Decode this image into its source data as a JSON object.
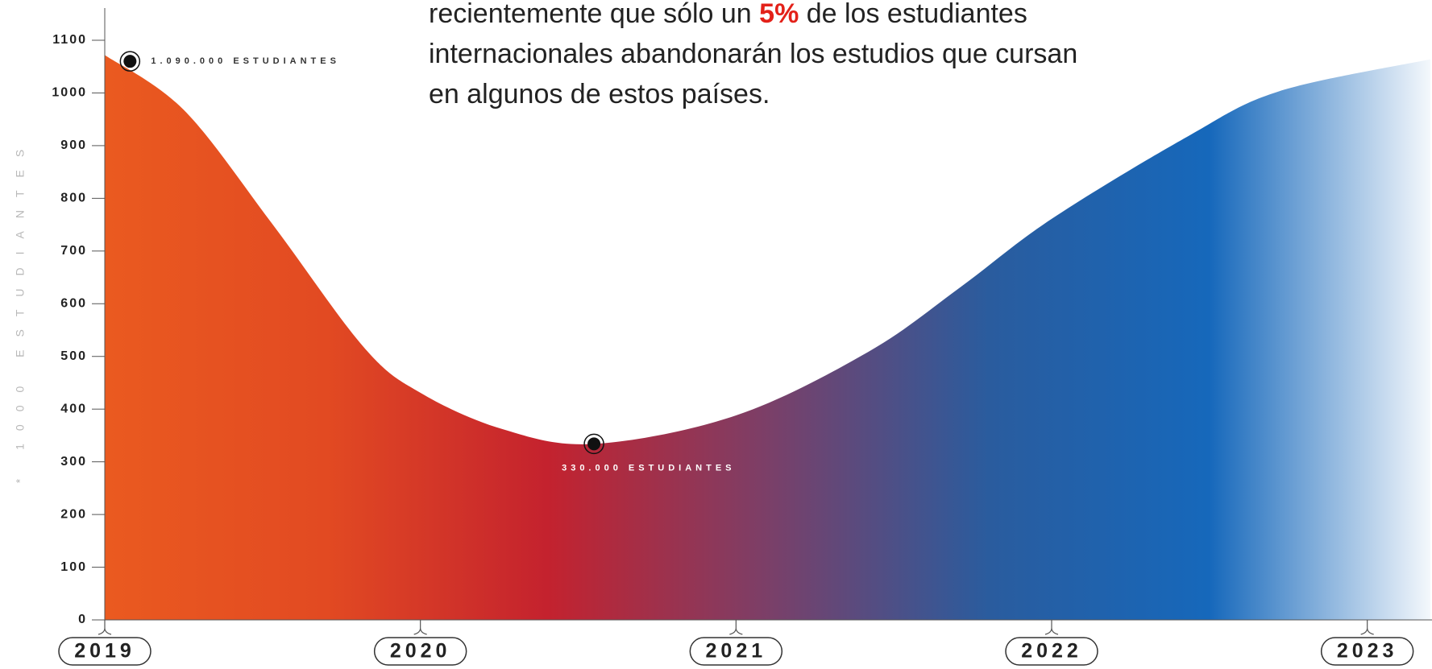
{
  "chart_data": {
    "type": "area",
    "ylabel": "* 1000 ESTUDIANTES",
    "x": [
      2019,
      2019.25,
      2019.53,
      2019.82,
      2020,
      2020.26,
      2020.55,
      2021,
      2021.42,
      2021.71,
      2022,
      2022.43,
      2022.72,
      2023.2
    ],
    "values": [
      1072,
      968,
      752,
      518,
      431,
      362,
      334,
      388,
      509,
      631,
      761,
      917,
      1003,
      1064
    ],
    "xlim": [
      2019,
      2023.2
    ],
    "xticks": [
      2019,
      2020,
      2021,
      2022,
      2023
    ],
    "ylim": [
      0,
      1100
    ],
    "yticks": [
      0,
      100,
      200,
      300,
      400,
      500,
      600,
      700,
      800,
      900,
      1000,
      1100
    ],
    "gradient": [
      "#ea5a20",
      "#e24a22",
      "#c4222e",
      "#7b3f68",
      "#2a5c9e",
      "#1668bb",
      "#f4f8fc"
    ],
    "annotations": [
      {
        "x": 2019.08,
        "y": 1060,
        "text": "1.090.000 ESTUDIANTES",
        "color": "#333333"
      },
      {
        "x": 2020.55,
        "y": 334,
        "text": "330.000 ESTUDIANTES",
        "color": "#ffffff"
      }
    ]
  },
  "paragraph": {
    "lines": [
      [
        "recientemente que sólo un ",
        "5%",
        " de los estudiantes"
      ],
      [
        "internacionales abandonarán los estudios que cursan"
      ],
      [
        "en algunos de estos países."
      ]
    ]
  }
}
